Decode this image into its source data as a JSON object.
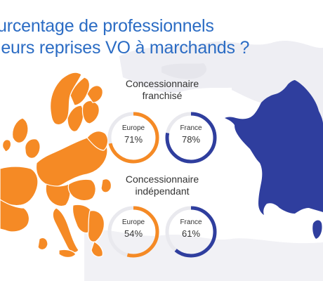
{
  "colors": {
    "europe": "#f58a25",
    "france": "#2f3e9e",
    "track": "#e9e9ee",
    "title": "#2b6cc4",
    "background_map": "#eeeef3"
  },
  "title": {
    "line1": "urcentage de professionnels",
    "line2": "leurs reprises VO à marchands ?"
  },
  "chart_data": {
    "type": "donut",
    "groups": [
      {
        "title_line1": "Concessionnaire",
        "title_line2": "franchisé",
        "items": [
          {
            "name": "Europe",
            "value": 71,
            "label": "71%"
          },
          {
            "name": "France",
            "value": 78,
            "label": "78%"
          }
        ]
      },
      {
        "title_line1": "Concessionnaire",
        "title_line2": "indépendant",
        "items": [
          {
            "name": "Europe",
            "value": 54,
            "label": "54%"
          },
          {
            "name": "France",
            "value": 61,
            "label": "61%"
          }
        ]
      }
    ]
  }
}
